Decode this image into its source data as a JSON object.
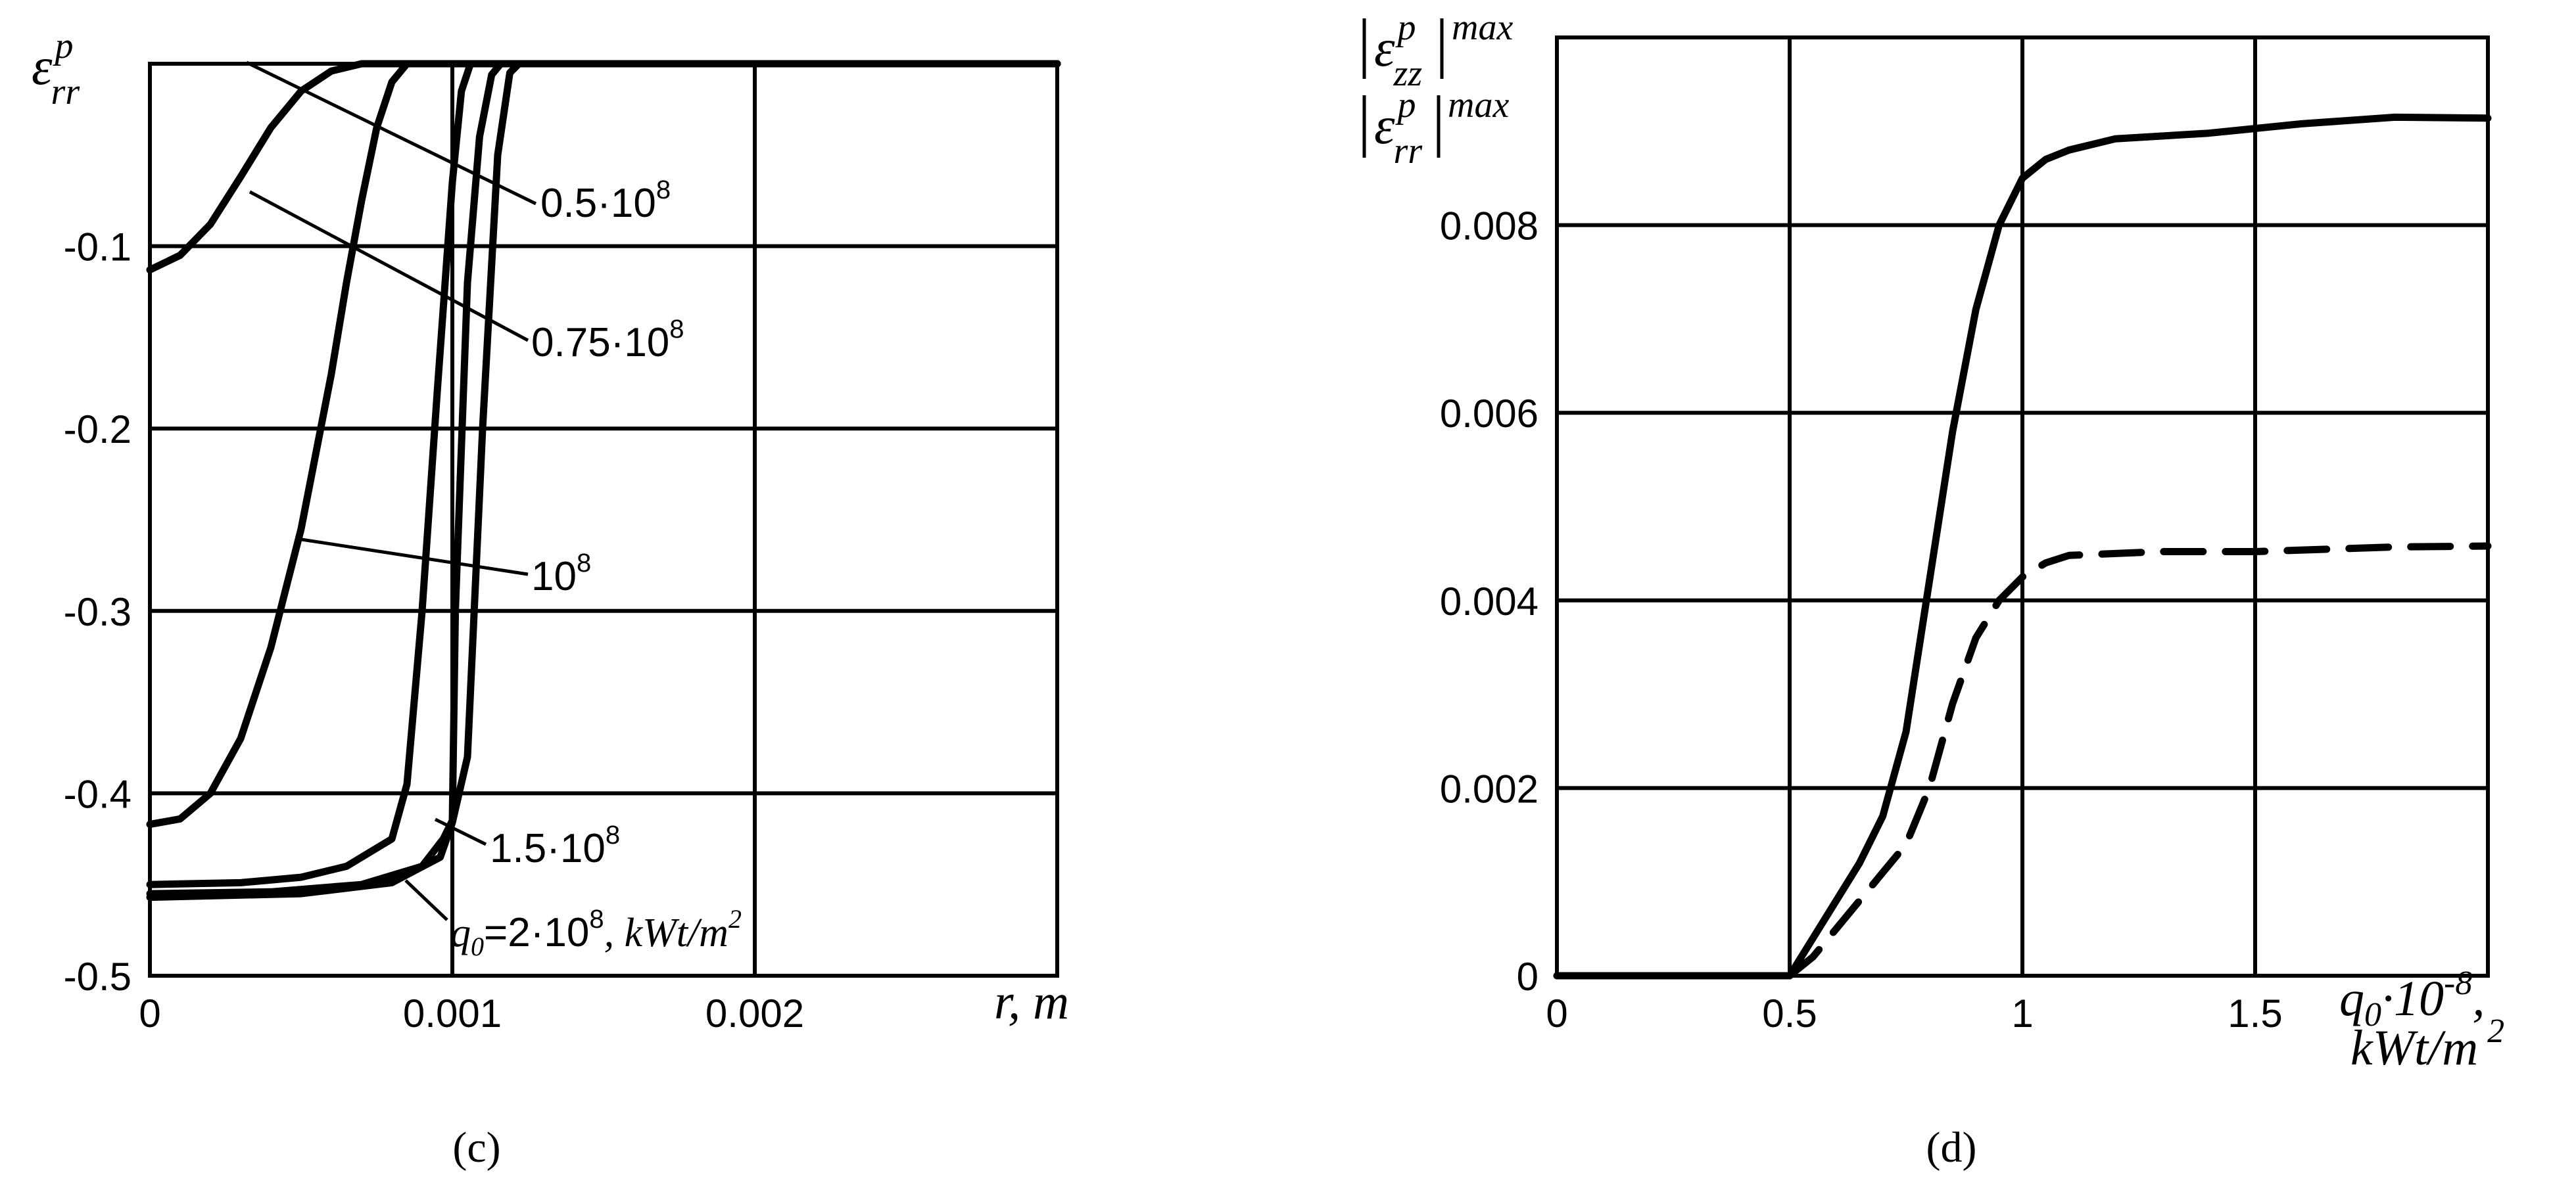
{
  "chart_data": [
    {
      "type": "line",
      "caption": "(c)",
      "ylabel_symbol": "ε",
      "ylabel_sup": "p",
      "ylabel_sub": "rr",
      "xlabel": "r, m",
      "xlim": [
        0,
        0.003
      ],
      "ylim": [
        -0.5,
        0
      ],
      "xticks": [
        0,
        0.001,
        0.002
      ],
      "xtick_labels": [
        "0",
        "0.001",
        "0.002"
      ],
      "yticks": [
        -0.1,
        -0.2,
        -0.3,
        -0.4,
        -0.5
      ],
      "ytick_labels": [
        "-0.1",
        "-0.2",
        "-0.3",
        "-0.4",
        "-0.5"
      ],
      "grid": true,
      "series": [
        {
          "name": "0.5·10^8",
          "points": [
            [
              0,
              -0.113
            ],
            [
              0.0001,
              -0.105
            ],
            [
              0.0002,
              -0.088
            ],
            [
              0.0003,
              -0.062
            ],
            [
              0.0004,
              -0.035
            ],
            [
              0.0005,
              -0.015
            ],
            [
              0.0006,
              -0.004
            ],
            [
              0.0007,
              0
            ],
            [
              0.003,
              0
            ]
          ]
        },
        {
          "name": "0.75·10^8",
          "points": [
            [
              0,
              -0.417
            ],
            [
              0.0001,
              -0.414
            ],
            [
              0.0002,
              -0.4
            ],
            [
              0.0003,
              -0.37
            ],
            [
              0.0004,
              -0.32
            ],
            [
              0.0005,
              -0.255
            ],
            [
              0.0006,
              -0.17
            ],
            [
              0.00065,
              -0.12
            ],
            [
              0.0007,
              -0.075
            ],
            [
              0.00075,
              -0.035
            ],
            [
              0.0008,
              -0.01
            ],
            [
              0.00085,
              0
            ],
            [
              0.003,
              0
            ]
          ]
        },
        {
          "name": "10^8",
          "points": [
            [
              0,
              -0.45
            ],
            [
              0.0003,
              -0.449
            ],
            [
              0.0005,
              -0.446
            ],
            [
              0.00065,
              -0.44
            ],
            [
              0.0008,
              -0.425
            ],
            [
              0.00085,
              -0.395
            ],
            [
              0.0009,
              -0.3
            ],
            [
              0.00095,
              -0.18
            ],
            [
              0.001,
              -0.065
            ],
            [
              0.00103,
              -0.015
            ],
            [
              0.00106,
              0
            ],
            [
              0.003,
              0
            ]
          ]
        },
        {
          "name": "1.5·10^8",
          "points": [
            [
              0,
              -0.455
            ],
            [
              0.0004,
              -0.454
            ],
            [
              0.0007,
              -0.45
            ],
            [
              0.0009,
              -0.44
            ],
            [
              0.00097,
              -0.425
            ],
            [
              0.001,
              -0.415
            ],
            [
              0.00101,
              -0.3
            ],
            [
              0.00105,
              -0.12
            ],
            [
              0.00109,
              -0.04
            ],
            [
              0.00113,
              -0.006
            ],
            [
              0.00116,
              0
            ],
            [
              0.003,
              0
            ]
          ]
        },
        {
          "name": "q0=2·10^8, kWt/m^2",
          "points": [
            [
              0,
              -0.457
            ],
            [
              0.0005,
              -0.455
            ],
            [
              0.0008,
              -0.449
            ],
            [
              0.00096,
              -0.435
            ],
            [
              0.001,
              -0.416
            ],
            [
              0.00105,
              -0.38
            ],
            [
              0.0011,
              -0.2
            ],
            [
              0.00115,
              -0.05
            ],
            [
              0.00119,
              -0.005
            ],
            [
              0.00122,
              0
            ],
            [
              0.003,
              0
            ]
          ]
        }
      ],
      "annotations": [
        {
          "base": "0.5·10",
          "exp": "8"
        },
        {
          "base": "0.75·10",
          "exp": "8"
        },
        {
          "base": "10",
          "exp": "8"
        },
        {
          "base": "1.5·10",
          "exp": "8"
        },
        {
          "q": "q",
          "q_sub": "0",
          "eq": "=2·10",
          "exp": "8",
          "unit": ", kWt/m",
          "unit_exp": "2"
        }
      ]
    },
    {
      "type": "line",
      "caption": "(d)",
      "ylabel_top": {
        "symbol": "ε",
        "sup": "p",
        "sub": "zz",
        "max": "max"
      },
      "ylabel_bottom": {
        "symbol": "ε",
        "sup": "p",
        "sub": "rr",
        "max": "max"
      },
      "xlabel": {
        "q": "q",
        "q_sub": "0",
        "rest": "·10",
        "exp": "-8",
        "comma": ",",
        "unit": "kWt/m",
        "unit_exp": "2"
      },
      "xlim": [
        0,
        2
      ],
      "ylim": [
        0,
        0.01
      ],
      "xticks": [
        0,
        0.5,
        1,
        1.5
      ],
      "xtick_labels": [
        "0",
        "0.5",
        "1",
        "1.5"
      ],
      "yticks": [
        0,
        0.002,
        0.004,
        0.006,
        0.008
      ],
      "ytick_labels": [
        "0",
        "0.002",
        "0.004",
        "0.006",
        "0.008"
      ],
      "grid": true,
      "series": [
        {
          "style": "solid",
          "points": [
            [
              0,
              0
            ],
            [
              0.5,
              0
            ],
            [
              0.55,
              0.0004
            ],
            [
              0.6,
              0.0008
            ],
            [
              0.65,
              0.0012
            ],
            [
              0.7,
              0.0017
            ],
            [
              0.75,
              0.0026
            ],
            [
              0.8,
              0.0042
            ],
            [
              0.85,
              0.0058
            ],
            [
              0.9,
              0.0071
            ],
            [
              0.95,
              0.008
            ],
            [
              1.0,
              0.0085
            ],
            [
              1.05,
              0.0087
            ],
            [
              1.1,
              0.0088
            ],
            [
              1.2,
              0.00892
            ],
            [
              1.4,
              0.00898
            ],
            [
              1.6,
              0.00908
            ],
            [
              1.8,
              0.00915
            ],
            [
              2.0,
              0.00914
            ]
          ]
        },
        {
          "style": "dashed",
          "points": [
            [
              0.5,
              0
            ],
            [
              0.55,
              0.0002
            ],
            [
              0.6,
              0.0005
            ],
            [
              0.65,
              0.0008
            ],
            [
              0.7,
              0.0011
            ],
            [
              0.75,
              0.0014
            ],
            [
              0.8,
              0.002
            ],
            [
              0.85,
              0.0029
            ],
            [
              0.9,
              0.0036
            ],
            [
              0.95,
              0.004
            ],
            [
              1.0,
              0.00425
            ],
            [
              1.05,
              0.0044
            ],
            [
              1.1,
              0.00448
            ],
            [
              1.3,
              0.00452
            ],
            [
              1.5,
              0.00452
            ],
            [
              1.8,
              0.00457
            ],
            [
              2.0,
              0.00458
            ]
          ]
        }
      ]
    }
  ]
}
